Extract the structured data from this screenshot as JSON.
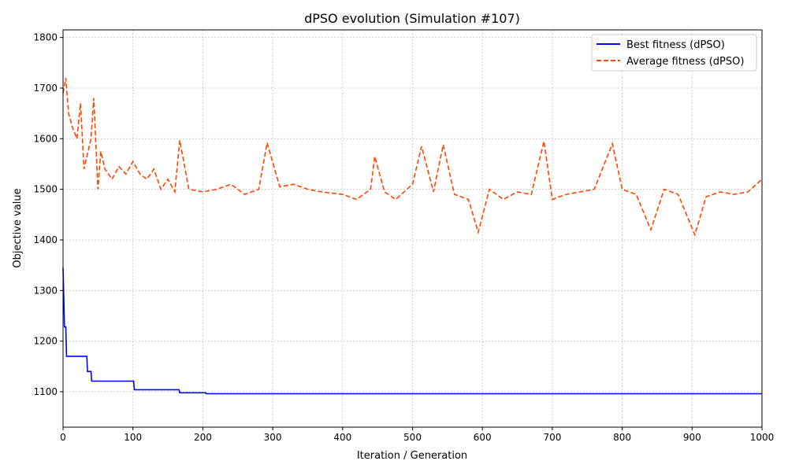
{
  "chart_data": {
    "type": "line",
    "title": "dPSO evolution (Simulation #107)",
    "xlabel": "Iteration / Generation",
    "ylabel": "Objective value",
    "xlim": [
      0,
      1000
    ],
    "ylim": [
      1030,
      1815
    ],
    "x_ticks": [
      0,
      100,
      200,
      300,
      400,
      500,
      600,
      700,
      800,
      900,
      1000
    ],
    "y_ticks": [
      1100,
      1200,
      1300,
      1400,
      1500,
      1600,
      1700,
      1800
    ],
    "grid": true,
    "legend": "top-right",
    "series": [
      {
        "name": "Best fitness (dPSO)",
        "style": "solid",
        "color": "#0000ff",
        "x": [
          0,
          1,
          2,
          3,
          4,
          5,
          34,
          35,
          40,
          41,
          101,
          102,
          166,
          167,
          204,
          205,
          1000
        ],
        "y": [
          1345,
          1290,
          1228,
          1228,
          1228,
          1170,
          1170,
          1140,
          1140,
          1121,
          1121,
          1104,
          1104,
          1098,
          1098,
          1096,
          1096
        ]
      },
      {
        "name": "Average fitness (dPSO)",
        "style": "dashed",
        "color": "#ff4500",
        "x": [
          0,
          4,
          8,
          14,
          20,
          25,
          30,
          40,
          44,
          50,
          54,
          60,
          70,
          80,
          90,
          100,
          110,
          120,
          130,
          140,
          150,
          160,
          167,
          180,
          200,
          220,
          240,
          260,
          280,
          292,
          310,
          330,
          350,
          370,
          400,
          420,
          440,
          446,
          460,
          476,
          500,
          513,
          530,
          544,
          560,
          580,
          594,
          610,
          630,
          650,
          670,
          688,
          700,
          720,
          740,
          760,
          786,
          800,
          820,
          841,
          860,
          880,
          904,
          920,
          940,
          960,
          980,
          1000
        ],
        "y": [
          1690,
          1720,
          1650,
          1620,
          1600,
          1670,
          1540,
          1600,
          1680,
          1500,
          1575,
          1540,
          1520,
          1545,
          1530,
          1555,
          1530,
          1520,
          1540,
          1500,
          1520,
          1495,
          1597,
          1500,
          1495,
          1500,
          1510,
          1490,
          1500,
          1592,
          1505,
          1510,
          1500,
          1495,
          1490,
          1480,
          1500,
          1565,
          1495,
          1480,
          1510,
          1585,
          1495,
          1588,
          1490,
          1480,
          1415,
          1500,
          1480,
          1495,
          1490,
          1595,
          1480,
          1490,
          1495,
          1500,
          1590,
          1500,
          1490,
          1420,
          1500,
          1490,
          1410,
          1485,
          1495,
          1490,
          1495,
          1520
        ]
      }
    ]
  }
}
